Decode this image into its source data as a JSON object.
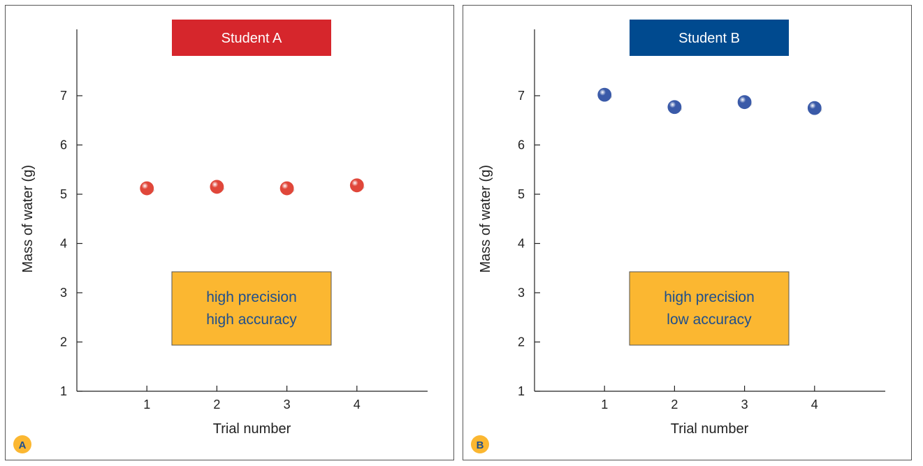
{
  "chart_data": [
    {
      "type": "scatter",
      "panel_label": "A",
      "title": "Student A",
      "banner_color": "#d6262c",
      "marker_color": "#e0473a",
      "xlabel": "Trial number",
      "ylabel": "Mass of water (g)",
      "x": [
        1,
        2,
        3,
        4
      ],
      "y": [
        5.12,
        5.15,
        5.12,
        5.18
      ],
      "x_ticks": [
        1,
        2,
        3,
        4
      ],
      "y_ticks": [
        1,
        2,
        3,
        4,
        5,
        6,
        7
      ],
      "xlim": [
        0,
        5
      ],
      "ylim": [
        1,
        8
      ],
      "grid": false,
      "annotation": {
        "lines": [
          "high precision",
          "high accuracy"
        ],
        "color": "#fbb731"
      }
    },
    {
      "type": "scatter",
      "panel_label": "B",
      "title": "Student B",
      "banner_color": "#004a8f",
      "marker_color": "#3a5aa8",
      "xlabel": "Trial number",
      "ylabel": "Mass of water (g)",
      "x": [
        1,
        2,
        3,
        4
      ],
      "y": [
        7.02,
        6.77,
        6.87,
        6.75
      ],
      "x_ticks": [
        1,
        2,
        3,
        4
      ],
      "y_ticks": [
        1,
        2,
        3,
        4,
        5,
        6,
        7
      ],
      "xlim": [
        0,
        5
      ],
      "ylim": [
        1,
        8
      ],
      "grid": false,
      "annotation": {
        "lines": [
          "high precision",
          "low accuracy"
        ],
        "color": "#fbb731"
      }
    }
  ],
  "colors": {
    "axis": "#222222",
    "box_text": "#1f4f8c",
    "badge": "#fbb731"
  }
}
